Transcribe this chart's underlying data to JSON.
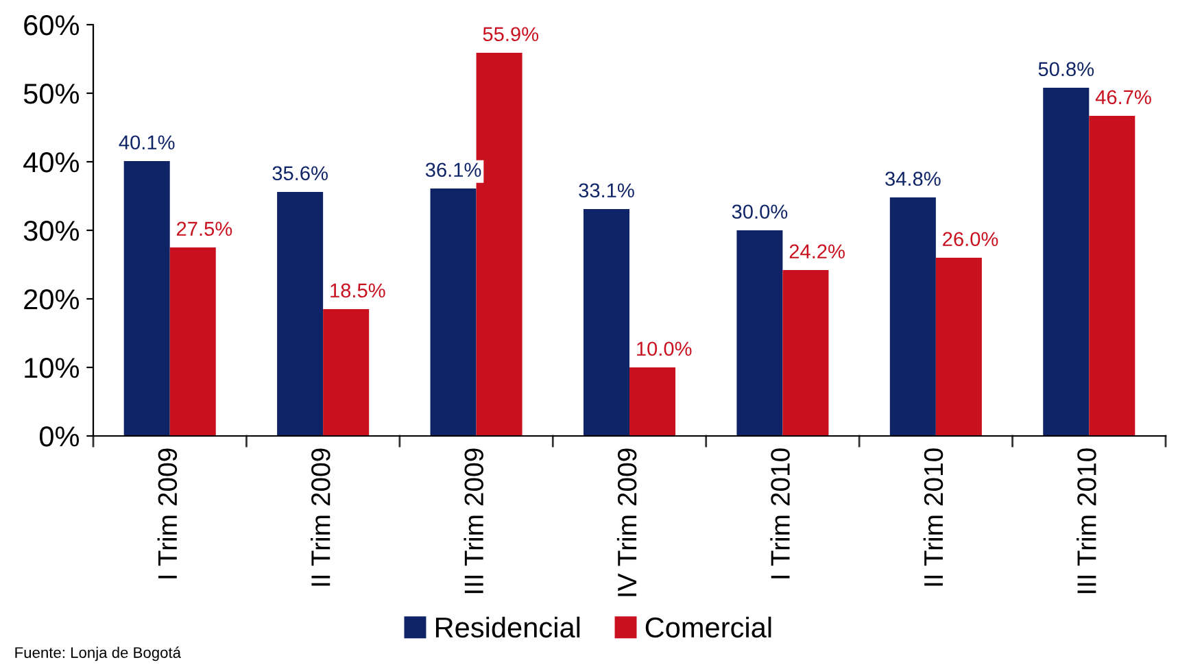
{
  "chart_data": {
    "type": "bar",
    "categories": [
      "I Trim 2009",
      "II Trim 2009",
      "III Trim 2009",
      "IV Trim 2009",
      "I Trim 2010",
      "II Trim 2010",
      "III Trim 2010"
    ],
    "series": [
      {
        "name": "Residencial",
        "color": "#0f2466",
        "values": [
          40.1,
          35.6,
          36.1,
          33.1,
          30.0,
          34.8,
          50.8
        ],
        "value_labels": [
          "40.1%",
          "35.6%",
          "36.1%",
          "33.1%",
          "30.0%",
          "34.8%",
          "50.8%"
        ]
      },
      {
        "name": "Comercial",
        "color": "#c8101e",
        "values": [
          27.5,
          18.5,
          55.9,
          10.0,
          24.2,
          26.0,
          46.7
        ],
        "value_labels": [
          "27.5%",
          "18.5%",
          "55.9%",
          "10.0%",
          "24.2%",
          "26.0%",
          "46.7%"
        ]
      }
    ],
    "ylim": [
      0,
      60
    ],
    "yticks": [
      {
        "value": 0,
        "label": "0%"
      },
      {
        "value": 10,
        "label": "10%"
      },
      {
        "value": 20,
        "label": "20%"
      },
      {
        "value": 30,
        "label": "30%"
      },
      {
        "value": 40,
        "label": "40%"
      },
      {
        "value": 50,
        "label": "50%"
      },
      {
        "value": 60,
        "label": "60%"
      }
    ],
    "grid": false,
    "legend": "bottom",
    "annotations": [
      "Fuente: Lonja de Bogotá"
    ]
  }
}
